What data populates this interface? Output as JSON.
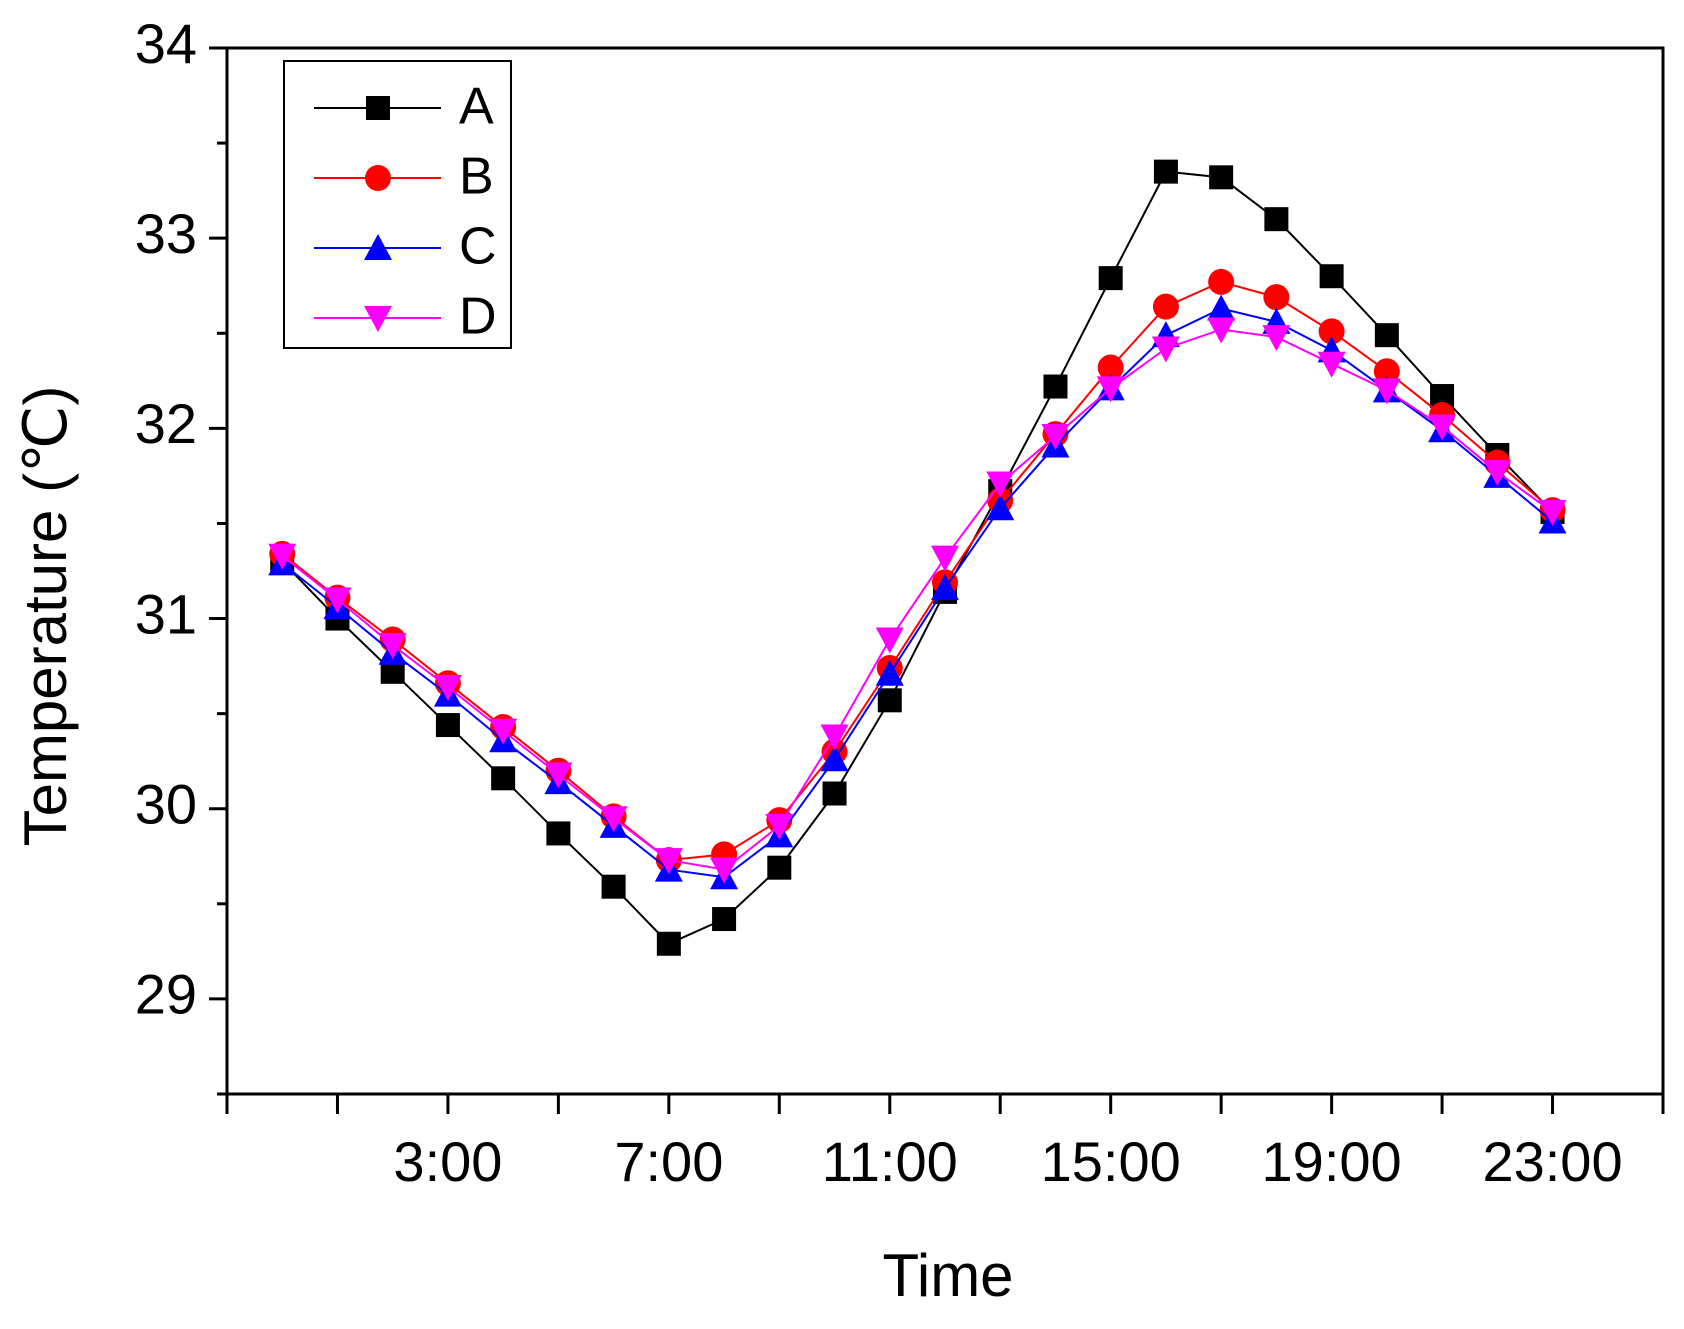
{
  "chart_data": {
    "type": "line",
    "xlabel": "Time",
    "ylabel": "Temperature (℃)",
    "x": [
      0,
      1,
      2,
      3,
      4,
      5,
      6,
      7,
      8,
      9,
      10,
      11,
      12,
      13,
      14,
      15,
      16,
      17,
      18,
      19,
      20,
      21,
      22,
      23
    ],
    "series": [
      {
        "name": "A",
        "color": "#000000",
        "marker": "square",
        "values": [
          31.3,
          31.0,
          30.72,
          30.44,
          30.16,
          29.87,
          29.59,
          29.29,
          29.42,
          29.69,
          30.08,
          30.57,
          31.14,
          31.67,
          32.22,
          32.79,
          33.35,
          33.32,
          33.1,
          32.8,
          32.49,
          32.17,
          31.86,
          31.56
        ]
      },
      {
        "name": "B",
        "color": "#ff0000",
        "marker": "circle",
        "values": [
          31.34,
          31.11,
          30.89,
          30.66,
          30.43,
          30.2,
          29.96,
          29.73,
          29.76,
          29.94,
          30.3,
          30.74,
          31.19,
          31.62,
          31.97,
          32.32,
          32.64,
          32.77,
          32.69,
          32.51,
          32.3,
          32.07,
          31.82,
          31.57
        ]
      },
      {
        "name": "C",
        "color": "#0000ff",
        "marker": "triangle-up",
        "values": [
          31.29,
          31.06,
          30.82,
          30.6,
          30.36,
          30.14,
          29.91,
          29.68,
          29.64,
          29.86,
          30.26,
          30.71,
          31.16,
          31.58,
          31.91,
          32.21,
          32.49,
          32.63,
          32.56,
          32.41,
          32.2,
          31.99,
          31.75,
          31.51
        ]
      },
      {
        "name": "D",
        "color": "#ff00ff",
        "marker": "triangle-down",
        "values": [
          31.33,
          31.1,
          30.86,
          30.64,
          30.41,
          30.18,
          29.95,
          29.73,
          29.68,
          29.91,
          30.38,
          30.89,
          31.32,
          31.71,
          31.96,
          32.21,
          32.42,
          32.52,
          32.48,
          32.34,
          32.2,
          32.01,
          31.77,
          31.56
        ]
      }
    ],
    "xlim": [
      -1,
      25
    ],
    "xticks": [
      {
        "value": 3,
        "label": "3:00"
      },
      {
        "value": 7,
        "label": "7:00"
      },
      {
        "value": 11,
        "label": "11:00"
      },
      {
        "value": 15,
        "label": "15:00"
      },
      {
        "value": 19,
        "label": "19:00"
      },
      {
        "value": 23,
        "label": "23:00"
      }
    ],
    "xminor": [
      -1,
      1,
      5,
      9,
      13,
      17,
      21,
      25
    ],
    "ylim": [
      28.5,
      34
    ],
    "yticks": [
      29,
      30,
      31,
      32,
      33,
      34
    ],
    "yminor": [
      28.5,
      29.5,
      30.5,
      31.5,
      32.5,
      33.5
    ],
    "legend": "upper left",
    "grid": false
  }
}
